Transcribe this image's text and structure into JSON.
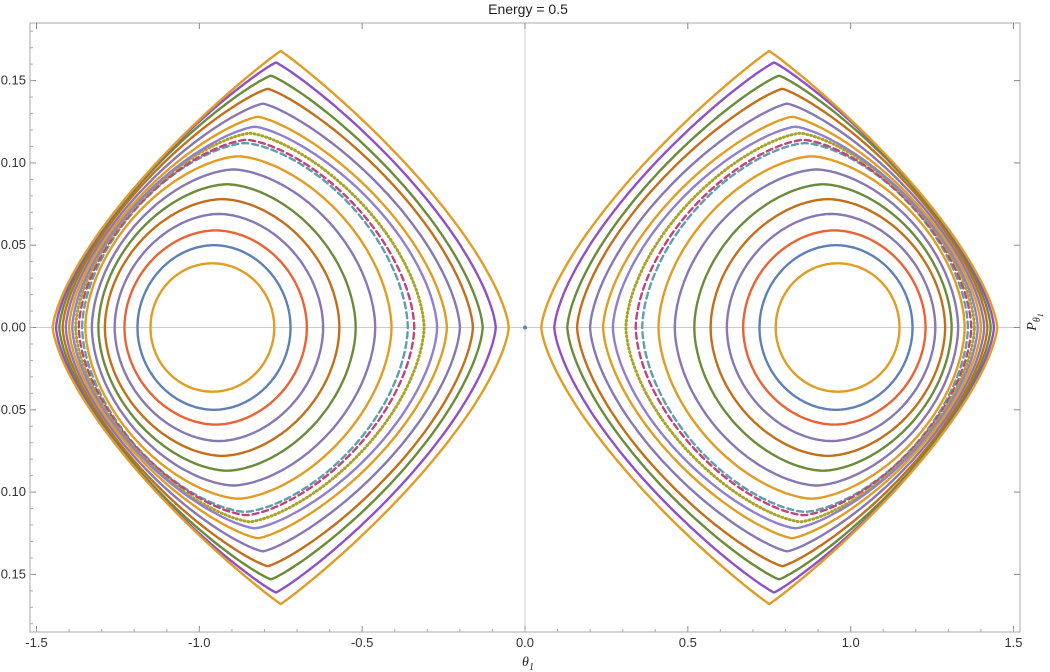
{
  "chart_data": {
    "type": "scatter",
    "title": "Energy = 0.5",
    "xlabel": "θ",
    "xlabel_sub": "1",
    "ylabel": "P",
    "ylabel_sub": "θ",
    "ylabel_subsub": "1",
    "xlim": [
      -1.52,
      1.52
    ],
    "ylim": [
      -0.185,
      0.185
    ],
    "x_ticks": [
      -1.5,
      -1.0,
      -0.5,
      0.0,
      0.5,
      1.0,
      1.5
    ],
    "x_tick_labels": [
      "-1.5",
      "-1.0",
      "-0.5",
      "0.0",
      "0.5",
      "1.0",
      "1.5"
    ],
    "y_ticks": [
      -0.15,
      -0.1,
      -0.05,
      0.0,
      0.05,
      0.1,
      0.15
    ],
    "y_tick_labels": [
      "-0.15",
      "-0.10",
      "-0.05",
      "0.00",
      "0.05",
      "0.10",
      "0.15"
    ],
    "grid": false,
    "legend": "none",
    "center_point": {
      "x": 0.0,
      "y": 0.0,
      "color": "#5E81B5"
    },
    "right_island_center": 0.96,
    "left_island_center": -0.96,
    "series": [
      {
        "color": "#E19C24",
        "pmax": 0.039,
        "xmin": 0.77,
        "xmax": 1.15,
        "style": "solid"
      },
      {
        "color": "#5E81B5",
        "pmax": 0.05,
        "xmin": 0.72,
        "xmax": 1.19,
        "style": "solid"
      },
      {
        "color": "#EB6235",
        "pmax": 0.059,
        "xmin": 0.67,
        "xmax": 1.23,
        "style": "solid"
      },
      {
        "color": "#8778B3",
        "pmax": 0.069,
        "xmin": 0.62,
        "xmax": 1.26,
        "style": "solid"
      },
      {
        "color": "#C56E1A",
        "pmax": 0.078,
        "xmin": 0.57,
        "xmax": 1.29,
        "style": "solid"
      },
      {
        "color": "#6A8C38",
        "pmax": 0.087,
        "xmin": 0.52,
        "xmax": 1.31,
        "style": "solid"
      },
      {
        "color": "#8778B3",
        "pmax": 0.096,
        "xmin": 0.46,
        "xmax": 1.33,
        "style": "solid"
      },
      {
        "color": "#E19C24",
        "pmax": 0.104,
        "xmin": 0.41,
        "xmax": 1.35,
        "style": "solid"
      },
      {
        "color": "#5E9EAD",
        "pmax": 0.112,
        "xmin": 0.36,
        "xmax": 1.36,
        "style": "dashed"
      },
      {
        "color": "#C2427A",
        "pmax": 0.114,
        "xmin": 0.34,
        "xmax": 1.37,
        "style": "dashed"
      },
      {
        "color": "#A8A428",
        "pmax": 0.118,
        "xmin": 0.31,
        "xmax": 1.38,
        "style": "dotted"
      },
      {
        "color": "#8F7FCF",
        "pmax": 0.122,
        "xmin": 0.27,
        "xmax": 1.39,
        "style": "solid"
      },
      {
        "color": "#E19C24",
        "pmax": 0.128,
        "xmin": 0.24,
        "xmax": 1.4,
        "style": "solid"
      },
      {
        "color": "#8778B3",
        "pmax": 0.136,
        "xmin": 0.2,
        "xmax": 1.41,
        "style": "solid"
      },
      {
        "color": "#C56E1A",
        "pmax": 0.145,
        "xmin": 0.16,
        "xmax": 1.42,
        "style": "solid"
      },
      {
        "color": "#6A8C38",
        "pmax": 0.153,
        "xmin": 0.13,
        "xmax": 1.43,
        "style": "solid"
      },
      {
        "color": "#8F50C8",
        "pmax": 0.161,
        "xmin": 0.09,
        "xmax": 1.44,
        "style": "solid"
      },
      {
        "color": "#E19C24",
        "pmax": 0.168,
        "xmin": 0.05,
        "xmax": 1.45,
        "style": "solid"
      }
    ]
  }
}
